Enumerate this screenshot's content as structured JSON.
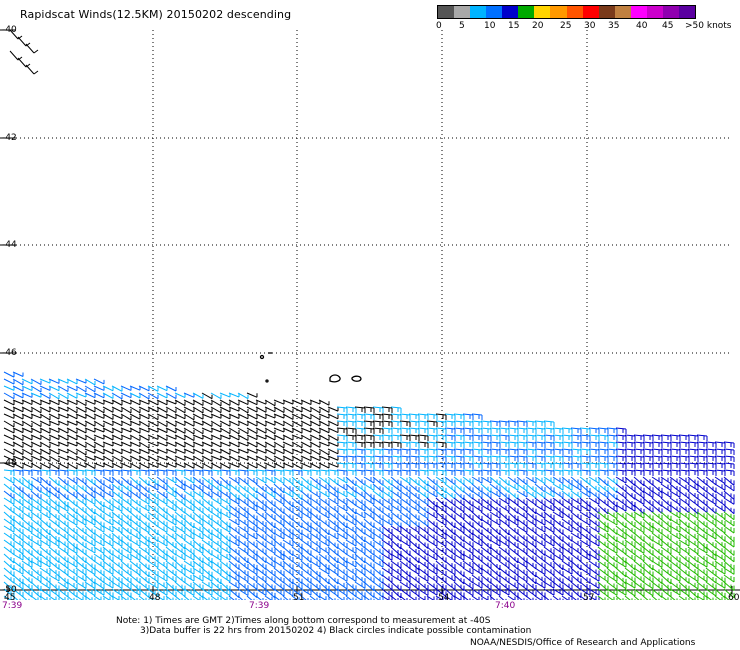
{
  "title": "Rapidscat Winds(12.5KM) 20150202 descending",
  "legend": {
    "colors": [
      "#555555",
      "#a8a8a8",
      "#00b4ff",
      "#0070ff",
      "#0000cc",
      "#00aa00",
      "#ffd400",
      "#ff9900",
      "#ff5500",
      "#ff0000",
      "#7a3a1a",
      "#c08040",
      "#ff00ff",
      "#cc00cc",
      "#9000b0",
      "#5a00a0"
    ],
    "labels": [
      "0",
      "5",
      "10",
      "15",
      "20",
      "25",
      "30",
      "35",
      "40",
      "45",
      ">50 knots"
    ]
  },
  "map": {
    "lat_labels": [
      "-40",
      "-42",
      "-44",
      "-46",
      "-48",
      "-50"
    ],
    "lon_labels": [
      "45",
      "48",
      "51",
      "54",
      "57",
      "60"
    ],
    "time_labels": [
      "7:39",
      "7:39",
      "7:40"
    ]
  },
  "notes": {
    "line1": "Note: 1) Times are GMT 2)Times along bottom correspond to measurement at -40S",
    "line2": "3)Data buffer is 22 hrs from 20150202 4) Black circles indicate possible contamination"
  },
  "credit": "NOAA/NESDIS/Office of Research and Applications"
}
